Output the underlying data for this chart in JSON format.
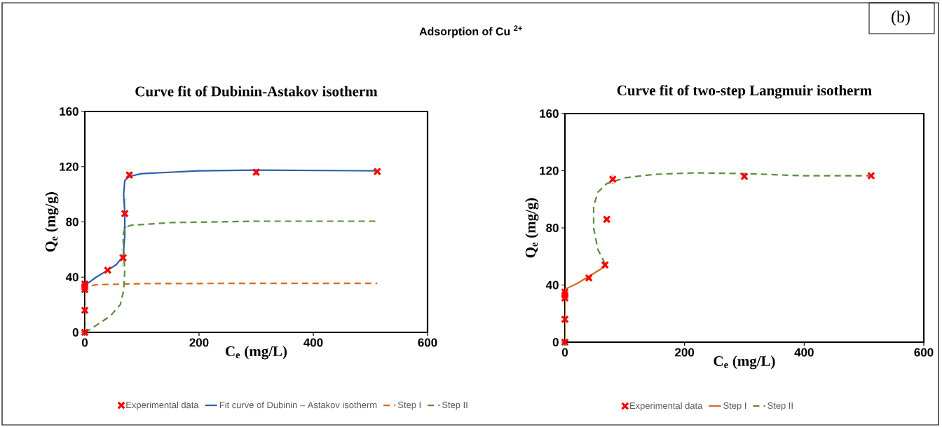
{
  "chart_data": [
    {
      "type": "line",
      "title": "Curve fit of Dubinin-Astakov isotherm",
      "xlabel": "C$_{e}$ (mg/L)",
      "ylabel": "Q$_{e}$ (mg/g)",
      "xlim": [
        0,
        600
      ],
      "ylim": [
        0,
        160
      ],
      "xticks": [
        0,
        200,
        400,
        600
      ],
      "yticks": [
        0,
        40,
        80,
        120,
        160
      ],
      "legend": "bottom",
      "annotations": [
        "Adsorption of Cu $^{2+}$",
        "(b)"
      ],
      "series": [
        {
          "name": "Experimental data",
          "type": "scatter",
          "marker": "cross",
          "color": "#ff0000",
          "x": [
            0,
            0,
            0,
            0,
            0,
            40,
            67,
            70,
            78,
            300,
            512
          ],
          "values": [
            0,
            16,
            31,
            33,
            35,
            45,
            54,
            86,
            114,
            116,
            116.5
          ],
          "errors": [
            null,
            null,
            null,
            4,
            null,
            null,
            6,
            10,
            2,
            2,
            null
          ]
        },
        {
          "name": "Fit curve of Dubinin – Astakov isotherm",
          "line_style": "solid",
          "color": "#2f5ea8",
          "x": [
            0,
            0,
            10,
            20,
            40,
            55,
            67,
            70,
            70,
            68,
            70,
            78,
            100,
            200,
            300,
            512
          ],
          "values": [
            0,
            34,
            37,
            40,
            45,
            49,
            55,
            70,
            86,
            100,
            110,
            113,
            115,
            117,
            117.5,
            117
          ]
        },
        {
          "name": "Step I",
          "line_style": "dashed",
          "color": "#d46a1e",
          "x": [
            0,
            0,
            20,
            100,
            300,
            512
          ],
          "values": [
            0,
            33,
            34.5,
            35.3,
            35.5,
            35.5
          ]
        },
        {
          "name": "Step II",
          "line_style": "dashed",
          "color": "#5b8c3a",
          "x": [
            0,
            20,
            45,
            62,
            68,
            70,
            68,
            67,
            70,
            80,
            150,
            300,
            512
          ],
          "values": [
            0,
            5,
            12,
            20,
            30,
            45,
            60,
            70,
            76,
            77.5,
            79.5,
            80.5,
            80.5
          ]
        }
      ]
    },
    {
      "type": "line",
      "title": "Curve fit of two-step Langmuir isotherm",
      "xlabel": "C$_{e}$ (mg/L)",
      "ylabel": "Q$_{e}$ (mg/g)",
      "xlim": [
        0,
        600
      ],
      "ylim": [
        0,
        160
      ],
      "xticks": [
        0,
        200,
        400,
        600
      ],
      "yticks": [
        0,
        40,
        80,
        120,
        160
      ],
      "legend": "bottom",
      "series": [
        {
          "name": "Experimental data",
          "type": "scatter",
          "marker": "cross",
          "color": "#ff0000",
          "x": [
            0,
            0,
            0,
            0,
            0,
            40,
            67,
            70,
            80,
            300,
            512
          ],
          "values": [
            0,
            16,
            31,
            33,
            35,
            45,
            54,
            86,
            114,
            116,
            116.5
          ],
          "errors": [
            null,
            null,
            null,
            null,
            null,
            null,
            null,
            null,
            3,
            null,
            null
          ]
        },
        {
          "name": "Step I",
          "line_style": "solid",
          "color": "#d46a1e",
          "x": [
            0,
            0,
            0,
            20,
            40,
            67
          ],
          "values": [
            0,
            34,
            37,
            41,
            46,
            53
          ]
        },
        {
          "name": "Step II",
          "line_style": "dashed",
          "color": "#5b8c3a",
          "x": [
            67,
            55,
            48,
            48,
            55,
            70,
            100,
            150,
            220,
            300,
            400,
            512
          ],
          "values": [
            55,
            65,
            80,
            95,
            105,
            111,
            115,
            117.5,
            118.5,
            118,
            116.5,
            116.5
          ]
        }
      ]
    }
  ]
}
